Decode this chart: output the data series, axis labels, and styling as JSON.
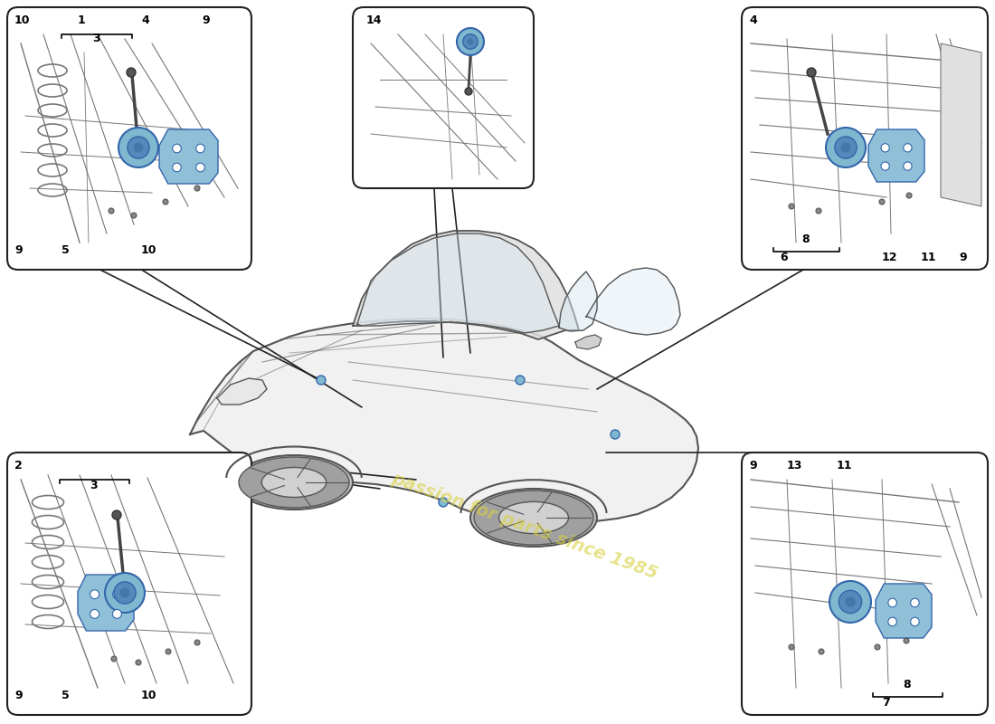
{
  "bg_color": "#ffffff",
  "watermark_text": "passion for parts since 1985",
  "watermark_color": "#d8d040",
  "watermark_alpha": 0.6,
  "part_color_blue": "#80b8d0",
  "part_color_blue2": "#90c0d8",
  "panel_border": "#222222",
  "line_color": "#555555",
  "sketch_color": "#777777"
}
